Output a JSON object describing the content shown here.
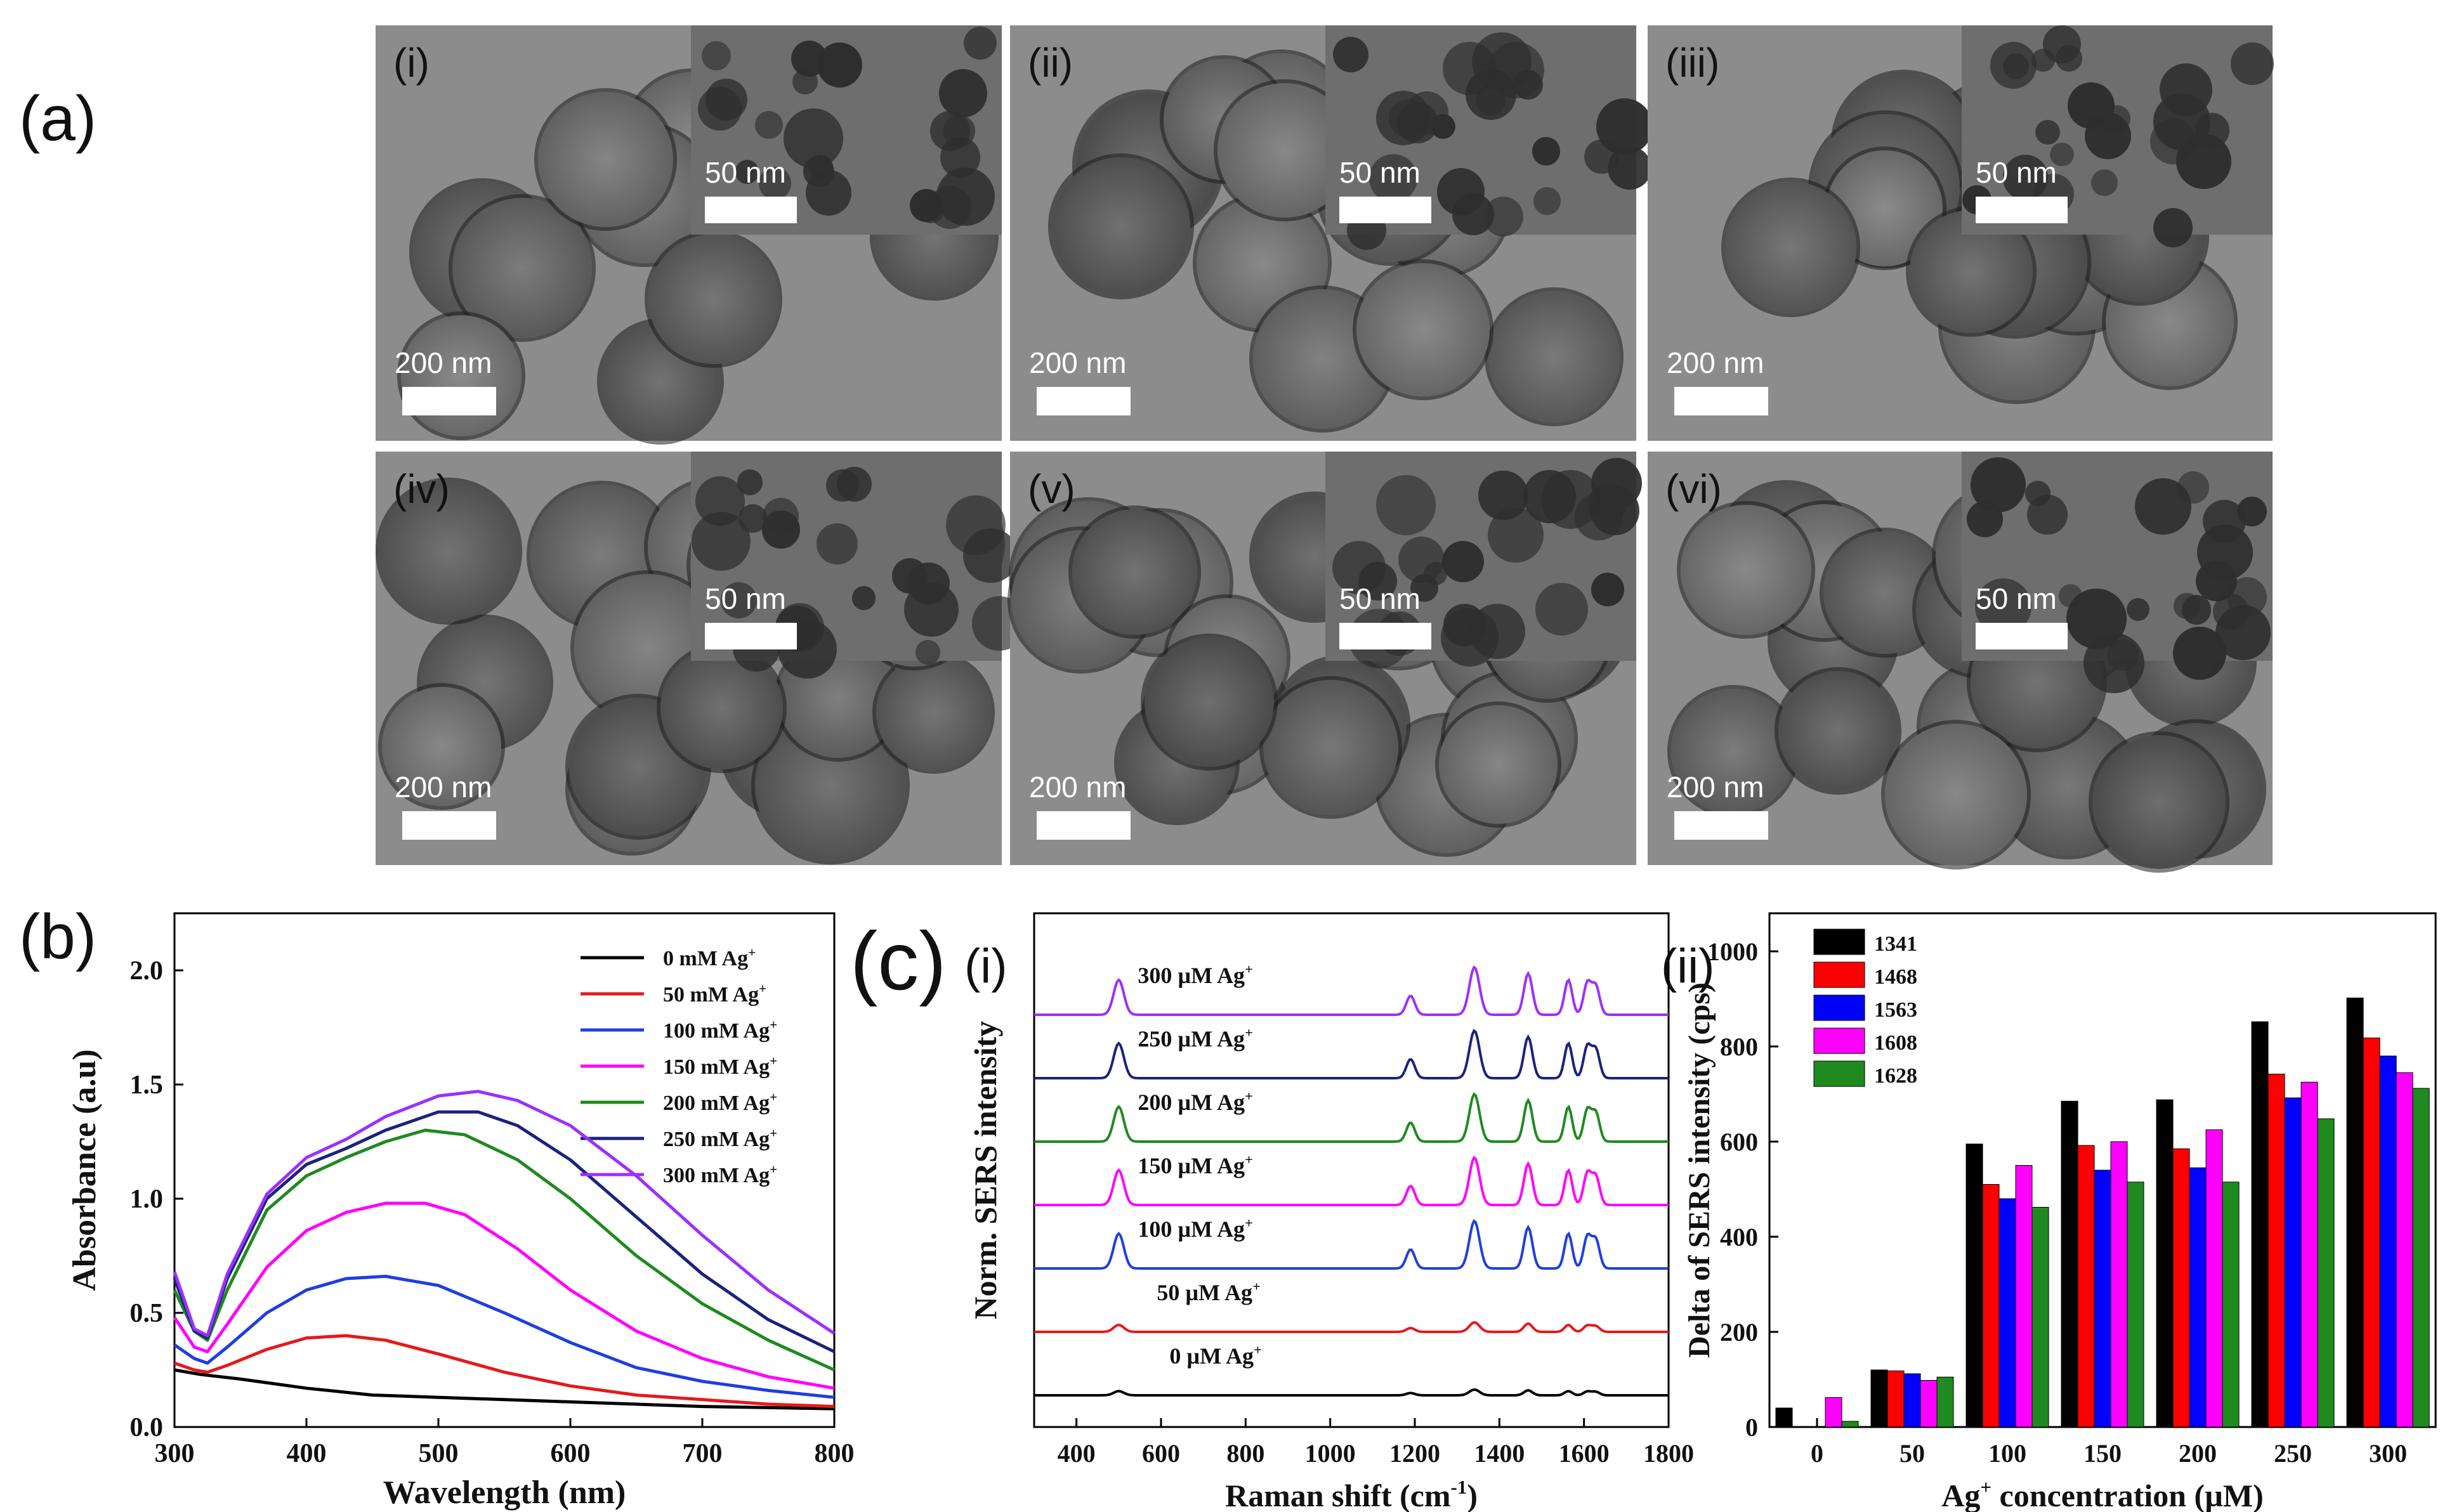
{
  "panels": {
    "a": "(a)",
    "b": "(b)",
    "c": "(c)",
    "c_i": "(i)",
    "c_ii": "(ii)"
  },
  "tem": {
    "labels": [
      "(i)",
      "(ii)",
      "(iii)",
      "(iv)",
      "(v)",
      "(vi)"
    ],
    "scale_main": "200 nm",
    "scale_inset": "50 nm"
  },
  "chart_data": [
    {
      "id": "b",
      "type": "line",
      "title": "",
      "xlabel": "Wavelength (nm)",
      "ylabel": "Absorbance (a.u)",
      "xlim": [
        300,
        800
      ],
      "ylim": [
        0,
        2.25
      ],
      "xticks": [
        "300",
        "400",
        "500",
        "600",
        "700",
        "800"
      ],
      "yticks": [
        "0.0",
        "0.5",
        "1.0",
        "1.5",
        "2.0"
      ],
      "legend": "top-right",
      "series": [
        {
          "name": "0 mM Ag",
          "sup": "+",
          "color": "#000000",
          "x": [
            300,
            320,
            350,
            400,
            450,
            500,
            550,
            600,
            650,
            700,
            750,
            800
          ],
          "y": [
            0.25,
            0.23,
            0.21,
            0.17,
            0.14,
            0.13,
            0.12,
            0.11,
            0.1,
            0.09,
            0.085,
            0.08
          ]
        },
        {
          "name": "50 mM Ag",
          "sup": "+",
          "color": "#e41a1c",
          "x": [
            300,
            315,
            325,
            340,
            370,
            400,
            430,
            460,
            500,
            550,
            600,
            650,
            700,
            750,
            800
          ],
          "y": [
            0.28,
            0.25,
            0.24,
            0.27,
            0.34,
            0.39,
            0.4,
            0.38,
            0.32,
            0.24,
            0.18,
            0.14,
            0.12,
            0.1,
            0.09
          ]
        },
        {
          "name": "100 mM Ag",
          "sup": "+",
          "color": "#1f3fe0",
          "x": [
            300,
            315,
            325,
            340,
            370,
            400,
            430,
            460,
            500,
            550,
            600,
            650,
            700,
            750,
            800
          ],
          "y": [
            0.36,
            0.3,
            0.28,
            0.35,
            0.5,
            0.6,
            0.65,
            0.66,
            0.62,
            0.5,
            0.37,
            0.26,
            0.2,
            0.16,
            0.13
          ]
        },
        {
          "name": "150 mM Ag",
          "sup": "+",
          "color": "#ff00ff",
          "x": [
            300,
            315,
            325,
            340,
            370,
            400,
            430,
            460,
            490,
            520,
            560,
            600,
            650,
            700,
            750,
            800
          ],
          "y": [
            0.48,
            0.35,
            0.33,
            0.45,
            0.7,
            0.86,
            0.94,
            0.98,
            0.98,
            0.93,
            0.78,
            0.6,
            0.42,
            0.3,
            0.22,
            0.17
          ]
        },
        {
          "name": "200 mM Ag",
          "sup": "+",
          "color": "#1f8a1f",
          "x": [
            300,
            315,
            325,
            340,
            370,
            400,
            430,
            460,
            490,
            520,
            560,
            600,
            650,
            700,
            750,
            800
          ],
          "y": [
            0.6,
            0.42,
            0.38,
            0.6,
            0.95,
            1.1,
            1.18,
            1.25,
            1.3,
            1.28,
            1.17,
            1.0,
            0.75,
            0.54,
            0.38,
            0.25
          ]
        },
        {
          "name": "250 mM Ag",
          "sup": "+",
          "color": "#1a237e",
          "x": [
            300,
            315,
            325,
            340,
            370,
            400,
            430,
            460,
            500,
            530,
            560,
            600,
            650,
            700,
            750,
            800
          ],
          "y": [
            0.65,
            0.42,
            0.39,
            0.65,
            1.0,
            1.15,
            1.22,
            1.3,
            1.38,
            1.38,
            1.32,
            1.17,
            0.92,
            0.67,
            0.47,
            0.33
          ]
        },
        {
          "name": "300 mM Ag",
          "sup": "+",
          "color": "#9b30ff",
          "x": [
            300,
            315,
            325,
            340,
            370,
            400,
            430,
            460,
            500,
            530,
            560,
            600,
            650,
            700,
            750,
            800
          ],
          "y": [
            0.68,
            0.43,
            0.4,
            0.67,
            1.02,
            1.18,
            1.26,
            1.36,
            1.45,
            1.47,
            1.43,
            1.32,
            1.1,
            0.84,
            0.6,
            0.41
          ]
        }
      ]
    },
    {
      "id": "c_i",
      "type": "line",
      "title": "",
      "xlabel": "Raman shift (cm",
      "xlabel_sup": "-1",
      "xlabel_end": ")",
      "ylabel": "Norm. SERS intensity",
      "xlim": [
        300,
        1800
      ],
      "xticks": [
        "400",
        "600",
        "800",
        "1000",
        "1200",
        "1400",
        "1600",
        "1800"
      ],
      "peaks": [
        500,
        1190,
        1341,
        1468,
        1563,
        1608,
        1628
      ],
      "series": [
        {
          "name": "0 µM Ag",
          "sup": "+",
          "color": "#000000",
          "offset": 0,
          "scale": 0.12
        },
        {
          "name": "50 µM Ag",
          "sup": "+",
          "color": "#e41a1c",
          "offset": 1,
          "scale": 0.2
        },
        {
          "name": "100 µM Ag",
          "sup": "+",
          "color": "#1f3fe0",
          "offset": 2,
          "scale": 1.0
        },
        {
          "name": "150 µM Ag",
          "sup": "+",
          "color": "#ff00ff",
          "offset": 3,
          "scale": 1.0
        },
        {
          "name": "200 µM Ag",
          "sup": "+",
          "color": "#1f8a1f",
          "offset": 4,
          "scale": 1.0
        },
        {
          "name": "250 µM Ag",
          "sup": "+",
          "color": "#1a237e",
          "offset": 5,
          "scale": 1.0
        },
        {
          "name": "300 µM Ag",
          "sup": "+",
          "color": "#9b30ff",
          "offset": 6,
          "scale": 1.0
        }
      ]
    },
    {
      "id": "c_ii",
      "type": "bar",
      "title": "",
      "xlabel": "Ag",
      "xlabel_sup": "+",
      "xlabel_end": " concentration (µM)",
      "ylabel": "Delta of SERS intensity (cps)",
      "ylim": [
        0,
        1080
      ],
      "yticks": [
        "0",
        "200",
        "400",
        "600",
        "800",
        "1000"
      ],
      "categories": [
        "0",
        "50",
        "100",
        "150",
        "200",
        "250",
        "300"
      ],
      "legend": "top-left",
      "series": [
        {
          "name": "1341",
          "color": "#000000",
          "values": [
            40,
            120,
            595,
            685,
            688,
            852,
            902
          ]
        },
        {
          "name": "1468",
          "color": "#ff0000",
          "values": [
            0,
            118,
            510,
            592,
            585,
            742,
            818
          ]
        },
        {
          "name": "1563",
          "color": "#0000ff",
          "values": [
            0,
            112,
            480,
            540,
            545,
            692,
            780
          ]
        },
        {
          "name": "1608",
          "color": "#ff00ff",
          "values": [
            62,
            98,
            550,
            600,
            625,
            725,
            745
          ]
        },
        {
          "name": "1628",
          "color": "#1f8a1f",
          "values": [
            12,
            105,
            462,
            515,
            515,
            648,
            712
          ]
        }
      ]
    }
  ]
}
